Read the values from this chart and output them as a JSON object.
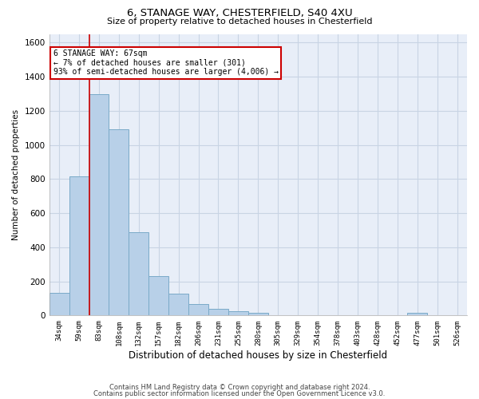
{
  "title1": "6, STANAGE WAY, CHESTERFIELD, S40 4XU",
  "title2": "Size of property relative to detached houses in Chesterfield",
  "xlabel": "Distribution of detached houses by size in Chesterfield",
  "ylabel": "Number of detached properties",
  "footnote1": "Contains HM Land Registry data © Crown copyright and database right 2024.",
  "footnote2": "Contains public sector information licensed under the Open Government Licence v3.0.",
  "categories": [
    "34sqm",
    "59sqm",
    "83sqm",
    "108sqm",
    "132sqm",
    "157sqm",
    "182sqm",
    "206sqm",
    "231sqm",
    "255sqm",
    "280sqm",
    "305sqm",
    "329sqm",
    "354sqm",
    "378sqm",
    "403sqm",
    "428sqm",
    "452sqm",
    "477sqm",
    "501sqm",
    "526sqm"
  ],
  "values": [
    135,
    815,
    1295,
    1090,
    490,
    230,
    130,
    68,
    40,
    27,
    17,
    0,
    0,
    0,
    0,
    0,
    0,
    0,
    17,
    0,
    0
  ],
  "bar_color": "#b8d0e8",
  "bar_edge_color": "#7aaac8",
  "grid_color": "#c8d4e4",
  "background_color": "#e8eef8",
  "vline_x": 1.5,
  "vline_color": "#cc0000",
  "annotation_text": "6 STANAGE WAY: 67sqm\n← 7% of detached houses are smaller (301)\n93% of semi-detached houses are larger (4,006) →",
  "annotation_box_color": "white",
  "annotation_box_edge": "#cc0000",
  "ylim": [
    0,
    1650
  ],
  "yticks": [
    0,
    200,
    400,
    600,
    800,
    1000,
    1200,
    1400,
    1600
  ]
}
